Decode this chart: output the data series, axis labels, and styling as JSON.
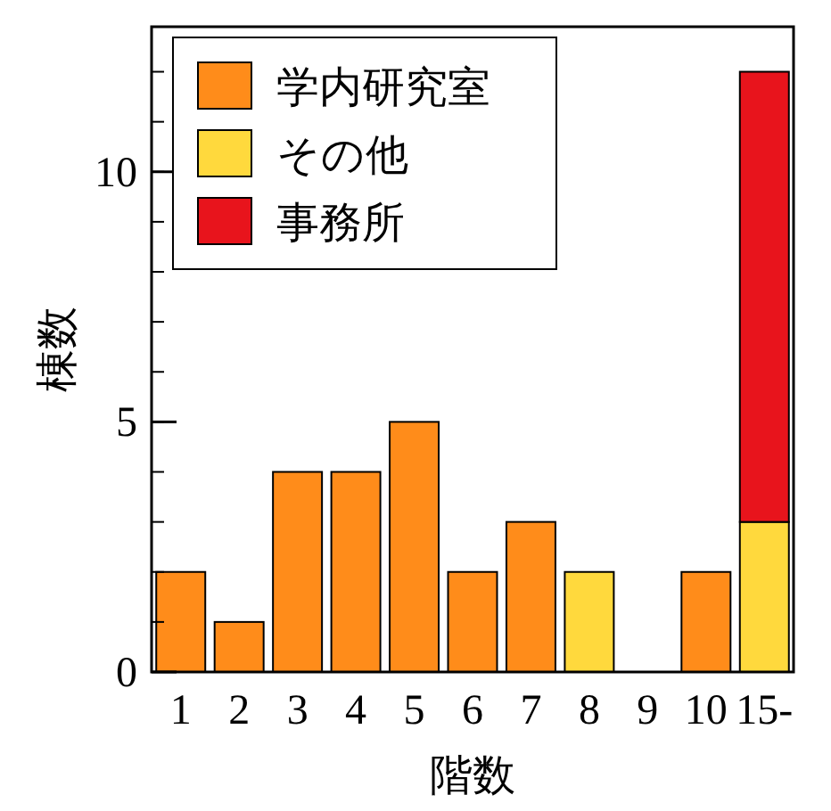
{
  "chart_data": {
    "type": "bar",
    "stacked": true,
    "xlabel": "階数",
    "ylabel": "棟数",
    "categories": [
      "1",
      "2",
      "3",
      "4",
      "5",
      "6",
      "7",
      "8",
      "9",
      "10",
      "15-"
    ],
    "series": [
      {
        "name": "学内研究室",
        "color": "#ff8c1a",
        "values": [
          2,
          1,
          4,
          4,
          5,
          2,
          3,
          null,
          0,
          2,
          null
        ]
      },
      {
        "name": "その他",
        "color": "#ffd93d",
        "values": [
          null,
          null,
          null,
          null,
          null,
          null,
          null,
          2,
          null,
          null,
          3
        ]
      },
      {
        "name": "事務所",
        "color": "#e8141c",
        "values": [
          null,
          null,
          null,
          null,
          null,
          null,
          null,
          null,
          null,
          null,
          9
        ]
      }
    ],
    "ylim": [
      0,
      12.9
    ],
    "yticks": [
      0,
      5,
      10
    ],
    "legend": "top left",
    "grid": false
  }
}
